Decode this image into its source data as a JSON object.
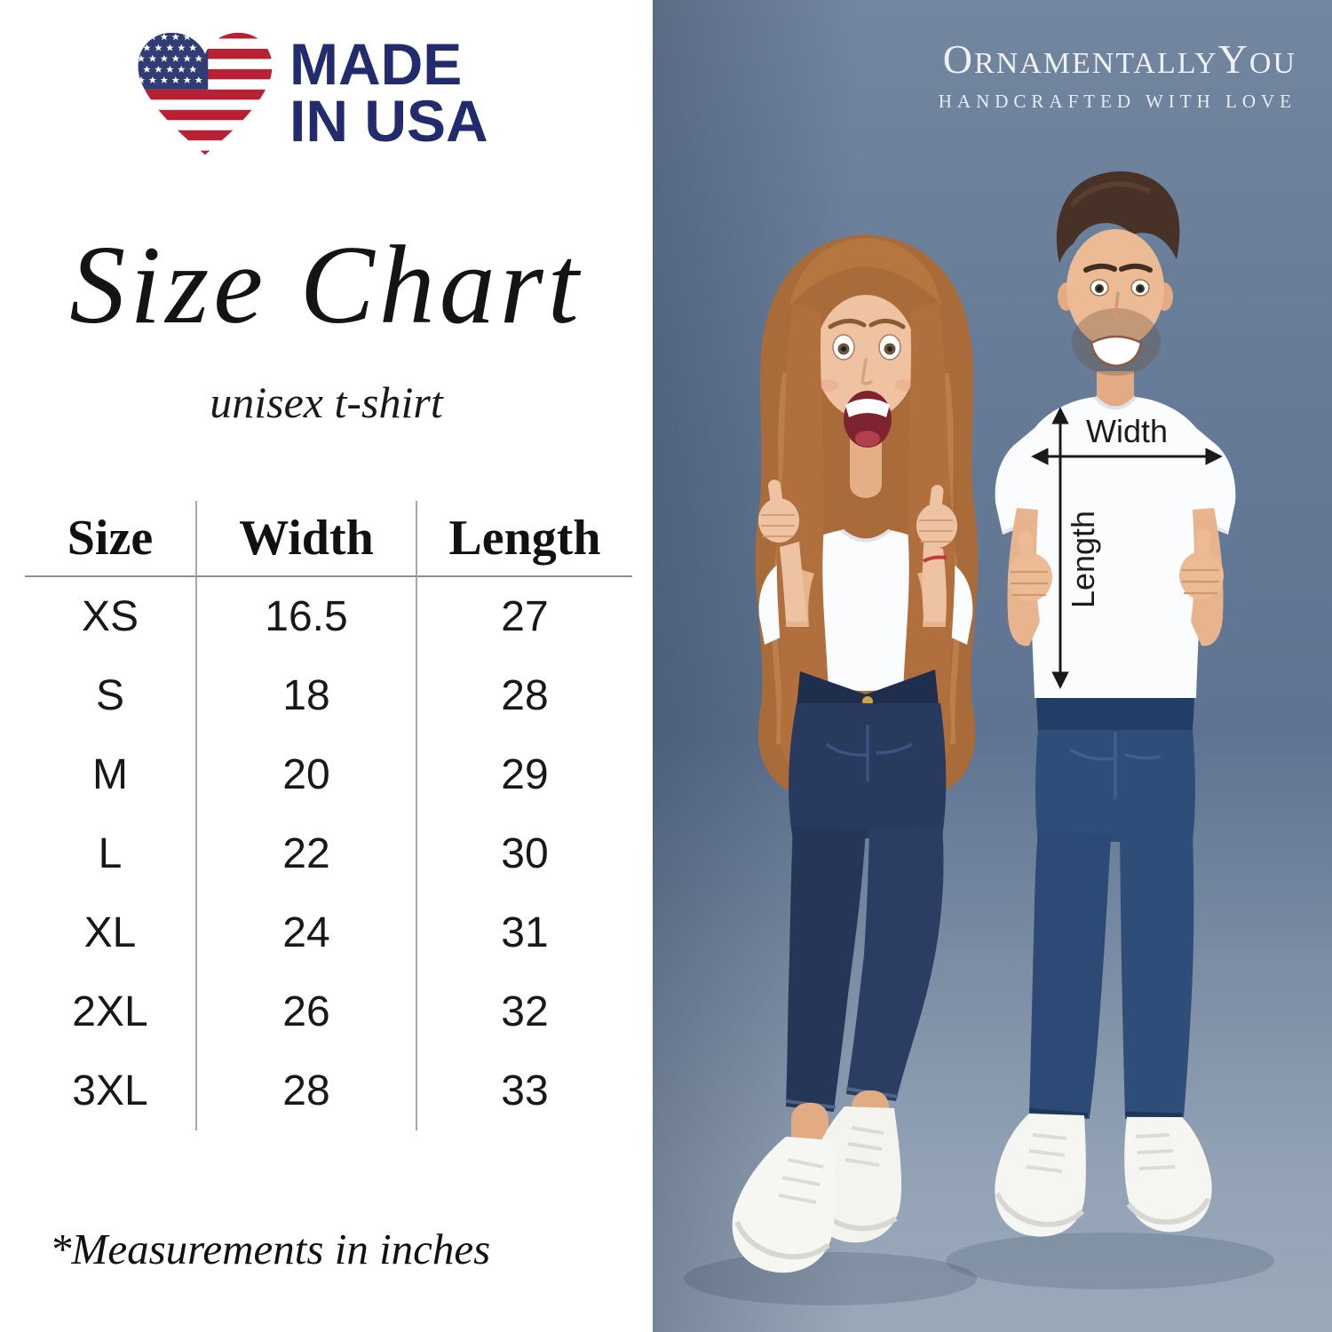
{
  "logo": {
    "line1": "MADE",
    "line2": "IN USA"
  },
  "title": "Size Chart",
  "subtitle": "unisex t-shirt",
  "size_table": {
    "headers": [
      "Size",
      "Width",
      "Length"
    ],
    "rows": [
      [
        "XS",
        "16.5",
        "27"
      ],
      [
        "S",
        "18",
        "28"
      ],
      [
        "M",
        "20",
        "29"
      ],
      [
        "L",
        "22",
        "30"
      ],
      [
        "XL",
        "24",
        "31"
      ],
      [
        "2XL",
        "26",
        "32"
      ],
      [
        "3XL",
        "28",
        "33"
      ]
    ],
    "units_note": "*Measurements in inches"
  },
  "brand": {
    "name_segments": [
      {
        "text": "O",
        "large": true
      },
      {
        "text": "RNAMENTALLY",
        "large": false
      },
      {
        "text": "Y",
        "large": true
      },
      {
        "text": "OU",
        "large": false
      }
    ],
    "tagline": "HANDCRAFTED WITH LOVE"
  },
  "measurements": {
    "width_label": "Width",
    "length_label": "Length"
  },
  "colors": {
    "logo_navy": "#222b6d",
    "flag_red": "#b72133",
    "flag_blue": "#303c74",
    "photo_bg_top": "#73869f",
    "photo_bg_bottom": "#9aa9ba",
    "arrow": "#1a1a1a"
  }
}
